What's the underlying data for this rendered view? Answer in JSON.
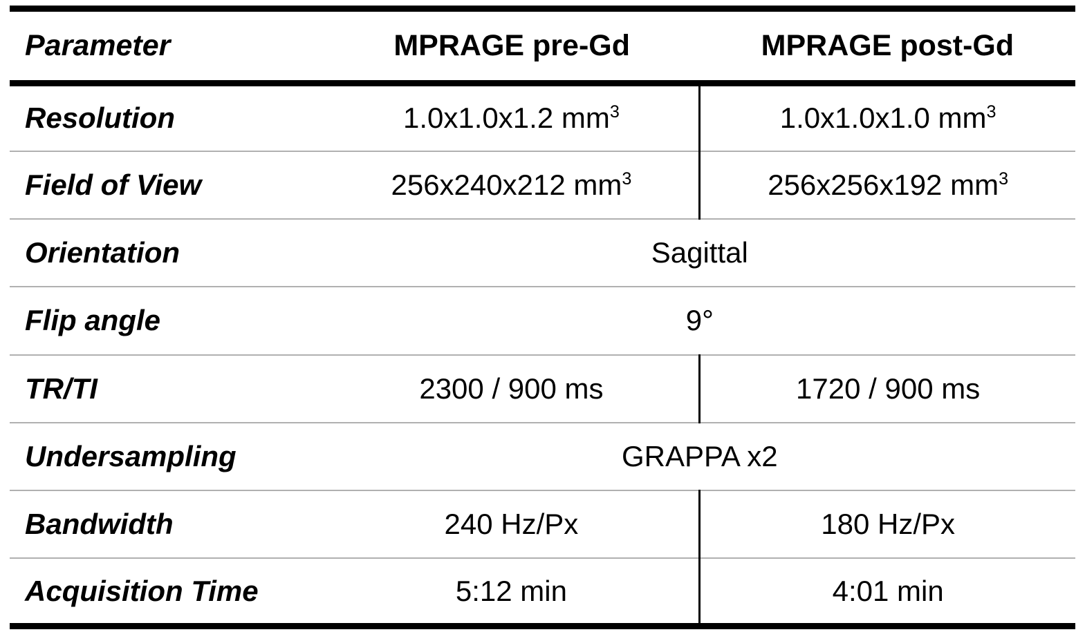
{
  "table": {
    "columns": [
      "Parameter",
      "MPRAGE pre-Gd",
      "MPRAGE post-Gd"
    ],
    "rows": [
      {
        "param": "Resolution",
        "pre": {
          "text": "1.0x1.0x1.2 mm",
          "sup": "3"
        },
        "post": {
          "text": "1.0x1.0x1.0 mm",
          "sup": "3"
        }
      },
      {
        "param": "Field of View",
        "pre": {
          "text": "256x240x212 mm",
          "sup": "3"
        },
        "post": {
          "text": "256x256x192 mm",
          "sup": "3"
        }
      },
      {
        "param": "Orientation",
        "value": "Sagittal"
      },
      {
        "param": "Flip angle",
        "value": "9°"
      },
      {
        "param": "TR/TI",
        "pre": {
          "text": "2300 / 900 ms"
        },
        "post": {
          "text": "1720 / 900 ms"
        }
      },
      {
        "param": "Undersampling",
        "value": "GRAPPA x2"
      },
      {
        "param": "Bandwidth",
        "pre": {
          "text": "240 Hz/Px"
        },
        "post": {
          "text": "180 Hz/Px"
        }
      },
      {
        "param": "Acquisition Time",
        "pre": {
          "text": "5:12 min"
        },
        "post": {
          "text": "4:01 min"
        }
      }
    ],
    "colors": {
      "border_heavy": "#000000",
      "border_light": "#b0b0b0",
      "text": "#000000",
      "background": "#ffffff"
    }
  }
}
